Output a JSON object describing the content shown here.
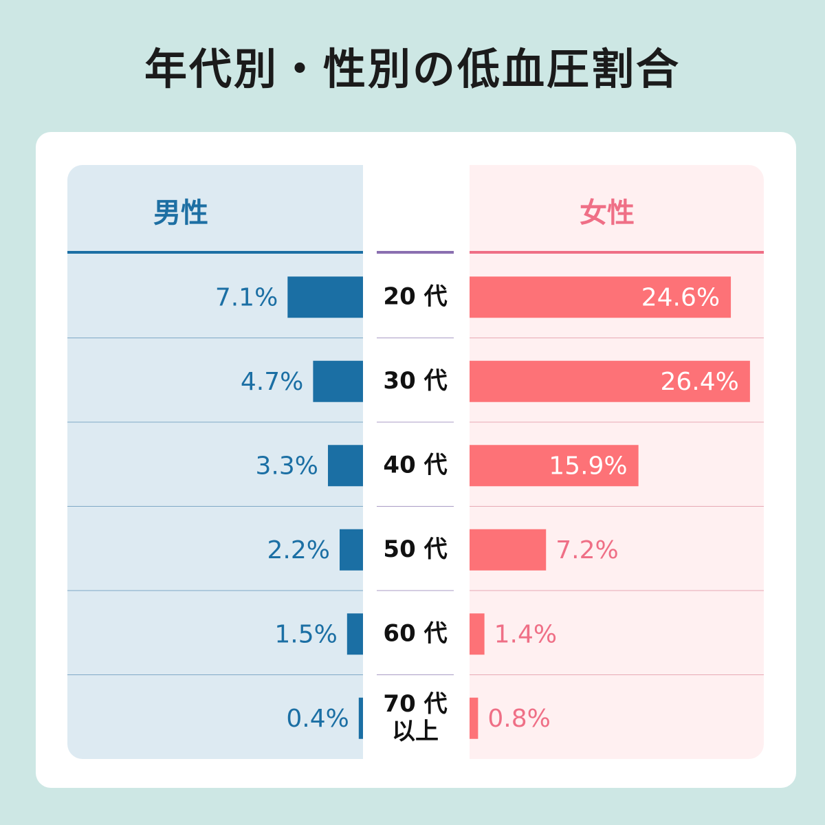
{
  "title": "年代別・性別の低血圧割合",
  "colors": {
    "male": "#1b6fa4",
    "female": "#fd7277",
    "female_text": "#ef6f86",
    "center_line": "#8a6fb0"
  },
  "chart_data": {
    "type": "bar",
    "orientation": "horizontal-diverging",
    "unit": "%",
    "categories": [
      "20 代",
      "30 代",
      "40 代",
      "50 代",
      "60 代",
      "70 代 以上"
    ],
    "series": [
      {
        "name": "男性",
        "values": [
          7.1,
          4.7,
          3.3,
          2.2,
          1.5,
          0.4
        ],
        "labels": [
          "7.1%",
          "4.7%",
          "3.3%",
          "2.2%",
          "1.5%",
          "0.4%"
        ]
      },
      {
        "name": "女性",
        "values": [
          24.6,
          26.4,
          15.9,
          7.2,
          1.4,
          0.8
        ],
        "labels": [
          "24.6%",
          "26.4%",
          "15.9%",
          "7.2%",
          "1.4%",
          "0.8%"
        ]
      }
    ],
    "age_labels": [
      [
        "20 代"
      ],
      [
        "30 代"
      ],
      [
        "40 代"
      ],
      [
        "50 代"
      ],
      [
        "60 代"
      ],
      [
        "70 代",
        "以上"
      ]
    ],
    "grid": true,
    "legend": "column headers"
  }
}
